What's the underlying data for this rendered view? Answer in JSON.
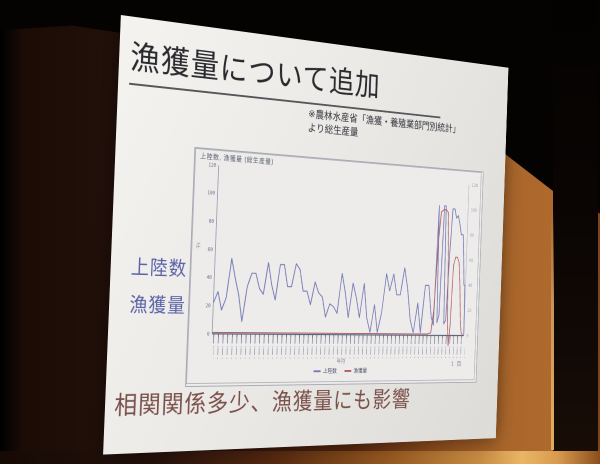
{
  "slide": {
    "title": "漁獲量について追加",
    "source_note_line1": "※農林水産省「漁獲・養殖業部門別統計」",
    "source_note_line2": "より総生産量",
    "label_landings": "上陸数",
    "label_catch": "漁獲量",
    "bottom_note": "相関関係多少、漁獲量にも影響",
    "footer_mark": "1 頁"
  },
  "colors": {
    "wall_orange": "#a8652a",
    "slide_bg": "#e9e8e4",
    "title_text": "#2a2a2e",
    "blue_label": "#5a61a6",
    "bottom_note_red": "#7b4f49",
    "line_blue": "#7478b6",
    "line_red": "#b05a5e"
  },
  "chart_data": {
    "type": "line",
    "title": "上陸数, 漁獲量 (総生産量)",
    "x_axis_note": "年月",
    "x_ticks": "dense rotated date labels, two staggered rows (illegible in photo)",
    "y_unit": "千t",
    "ylim": [
      0,
      120
    ],
    "y_ticks": [
      0,
      20,
      40,
      60,
      80,
      100,
      120
    ],
    "grid": false,
    "legend_position": "bottom-center",
    "series": [
      {
        "name": "上陸数",
        "color": "#7478b6",
        "points": [
          [
            0,
            22
          ],
          [
            1.5,
            30
          ],
          [
            3,
            17
          ],
          [
            4.5,
            26
          ],
          [
            6,
            54
          ],
          [
            7.5,
            40
          ],
          [
            9,
            28
          ],
          [
            10.5,
            9
          ],
          [
            12,
            34
          ],
          [
            13.5,
            44
          ],
          [
            15,
            44
          ],
          [
            16.5,
            33
          ],
          [
            18,
            29
          ],
          [
            19.5,
            52
          ],
          [
            21,
            36
          ],
          [
            22.5,
            25
          ],
          [
            24,
            51
          ],
          [
            25.5,
            51
          ],
          [
            27,
            35
          ],
          [
            28.5,
            35
          ],
          [
            30,
            52
          ],
          [
            31.5,
            48
          ],
          [
            33,
            32
          ],
          [
            34.5,
            32
          ],
          [
            36,
            22
          ],
          [
            37.5,
            39
          ],
          [
            39,
            31
          ],
          [
            40.5,
            28
          ],
          [
            42,
            13
          ],
          [
            43.5,
            23
          ],
          [
            45,
            21
          ],
          [
            46.5,
            16
          ],
          [
            48,
            46
          ],
          [
            49.5,
            32
          ],
          [
            51,
            13
          ],
          [
            52.5,
            39
          ],
          [
            54,
            28
          ],
          [
            55.5,
            13
          ],
          [
            57,
            39
          ],
          [
            58.5,
            13
          ],
          [
            60,
            2
          ],
          [
            61.5,
            23
          ],
          [
            63,
            2
          ],
          [
            64.5,
            17
          ],
          [
            66,
            47
          ],
          [
            67.5,
            34
          ],
          [
            69,
            47
          ],
          [
            70.5,
            31
          ],
          [
            72,
            31
          ],
          [
            73.5,
            52
          ],
          [
            75,
            36
          ],
          [
            76.5,
            12
          ],
          [
            78,
            2
          ],
          [
            79.5,
            25
          ],
          [
            81,
            2
          ],
          [
            82.5,
            39
          ],
          [
            84,
            39
          ],
          [
            85.5,
            14
          ],
          [
            86.5,
            8
          ],
          [
            87.3,
            102
          ],
          [
            88,
            10
          ],
          [
            88.8,
            16
          ],
          [
            89.6,
            102
          ],
          [
            90.3,
            102
          ],
          [
            91,
            9
          ],
          [
            91.8,
            12
          ],
          [
            92.5,
            63
          ],
          [
            93.3,
            100
          ],
          [
            94.2,
            100
          ],
          [
            95,
            93
          ],
          [
            95.8,
            95
          ],
          [
            96.6,
            88
          ],
          [
            97.4,
            80
          ],
          [
            98.2,
            80
          ],
          [
            98.8,
            62
          ],
          [
            99.3,
            40
          ],
          [
            99.7,
            40
          ],
          [
            100,
            0
          ]
        ]
      },
      {
        "name": "漁獲量",
        "color": "#b05a5e",
        "points": [
          [
            0,
            1
          ],
          [
            40,
            1
          ],
          [
            80,
            1
          ],
          [
            84,
            1
          ],
          [
            85.5,
            2
          ],
          [
            86.5,
            20
          ],
          [
            87.5,
            75
          ],
          [
            88.3,
            97
          ],
          [
            89.5,
            99
          ],
          [
            90.5,
            99
          ],
          [
            91.3,
            97
          ],
          [
            92,
            60
          ],
          [
            92.6,
            10
          ],
          [
            93.2,
            -8
          ],
          [
            93.8,
            8
          ],
          [
            94.4,
            55
          ],
          [
            95.2,
            62
          ],
          [
            96,
            62
          ],
          [
            96.8,
            58
          ],
          [
            97.5,
            40
          ],
          [
            98.2,
            12
          ],
          [
            98.8,
            2
          ],
          [
            99.5,
            0
          ]
        ]
      }
    ]
  }
}
